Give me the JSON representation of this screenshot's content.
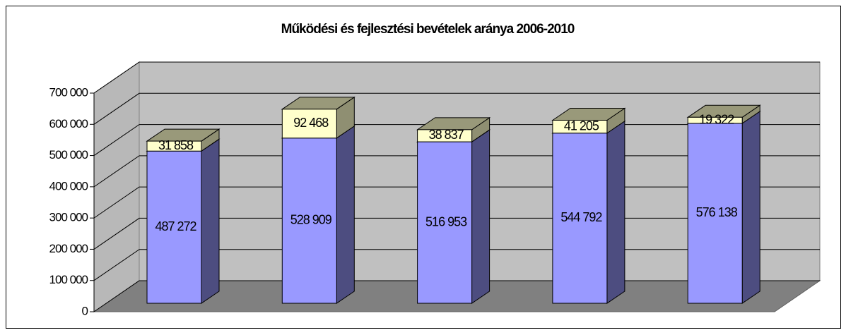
{
  "chart_data": {
    "type": "bar3d_stacked",
    "title": "Működési és fejlesztési bevételek aránya 2006-2010",
    "series": [
      {
        "color": "#9999ff",
        "values": [
          487272,
          528909,
          516953,
          544792,
          576138
        ],
        "value_labels": [
          "487 272",
          "528 909",
          "516 953",
          "544 792",
          "576 138"
        ]
      },
      {
        "color": "#ffffcc",
        "values": [
          31858,
          92468,
          38837,
          41205,
          19322
        ],
        "value_labels": [
          "31 858",
          "92 468",
          "38 837",
          "41 205",
          "19 322"
        ]
      }
    ],
    "ylim": [
      0,
      700000
    ],
    "yticks": [
      0,
      {
        "value": 100000,
        "label": "100 000"
      },
      {
        "value": 200000,
        "label": "200 000"
      },
      {
        "value": 300000,
        "label": "300 000"
      },
      {
        "value": 400000,
        "label": "400 000"
      },
      {
        "value": 500000,
        "label": "500 000"
      },
      {
        "value": 600000,
        "label": "600 000"
      },
      {
        "value": 700000,
        "label": "700 000"
      }
    ],
    "grid": true
  }
}
